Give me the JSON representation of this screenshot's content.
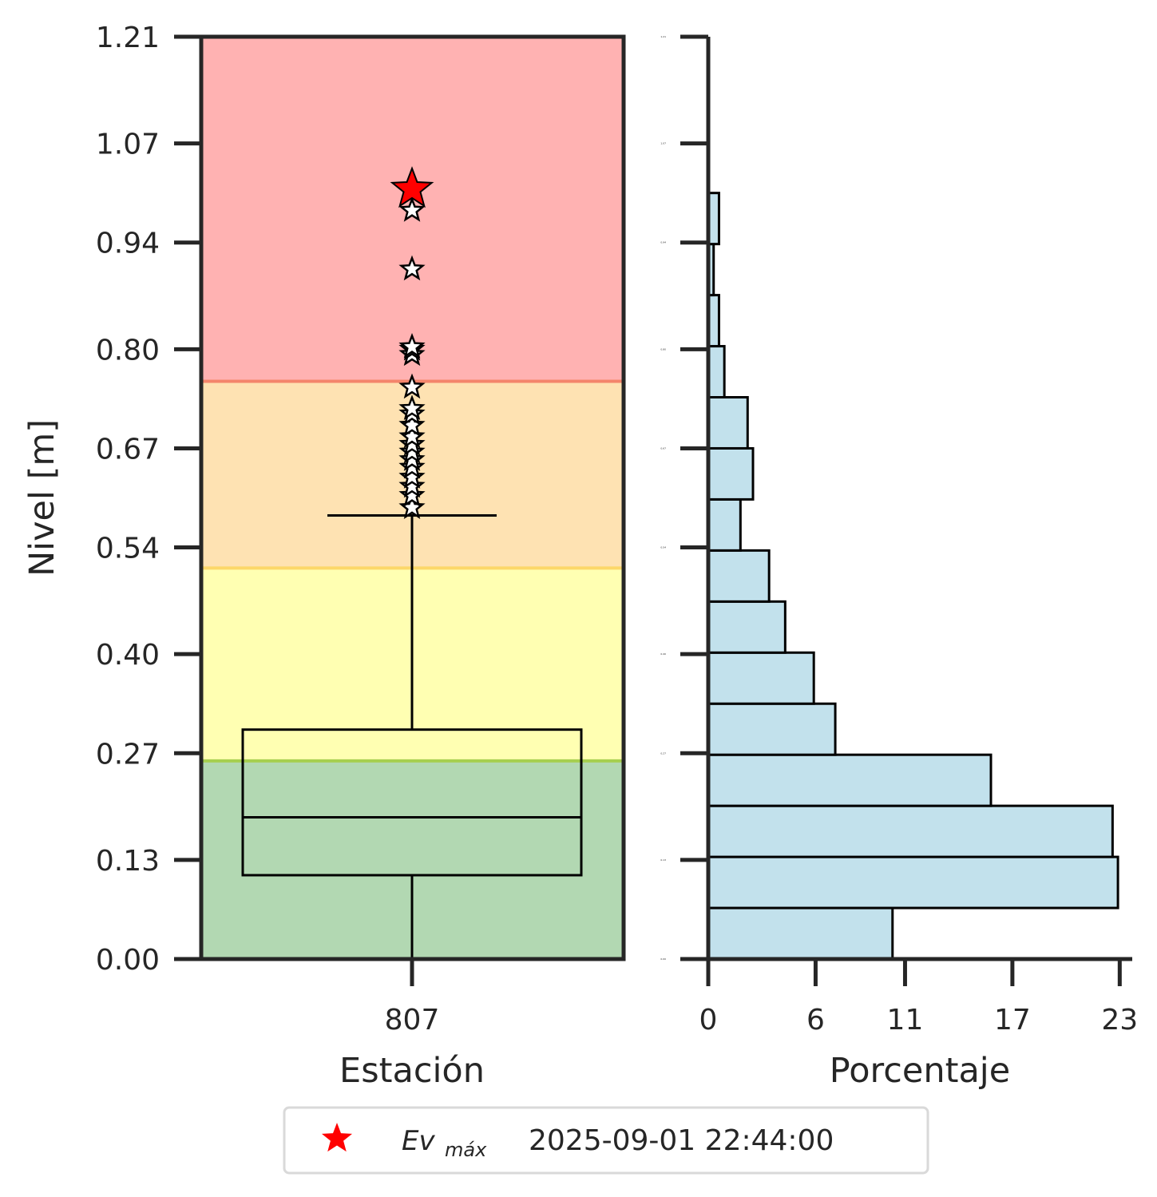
{
  "chart_data": [
    {
      "type": "box",
      "ylabel": "Nivel [m]",
      "xlabel": "Estación",
      "categories": [
        "807"
      ],
      "ylim": [
        0.0,
        1.21
      ],
      "yticks": [
        "0.00",
        "0.13",
        "0.27",
        "0.40",
        "0.54",
        "0.67",
        "0.80",
        "0.94",
        "1.07",
        "1.21"
      ],
      "bands": [
        {
          "from": 0.0,
          "to": 0.26,
          "color": "#b2d8b2",
          "edge": "#a6cf4f"
        },
        {
          "from": 0.26,
          "to": 0.513,
          "color": "#ffffb2",
          "edge": "#fcd76a"
        },
        {
          "from": 0.513,
          "to": 0.758,
          "color": "#fee2b2",
          "edge": "#f4856b"
        },
        {
          "from": 0.758,
          "to": 1.21,
          "color": "#ffb2b2",
          "edge": null
        }
      ],
      "box": {
        "whisker_low": 0.0,
        "q1": 0.11,
        "median": 0.186,
        "q3": 0.301,
        "whisker_high": 0.582
      },
      "outliers": [
        0.592,
        0.608,
        0.62,
        0.632,
        0.645,
        0.655,
        0.665,
        0.675,
        0.685,
        0.7,
        0.715,
        0.722,
        0.75,
        0.793,
        0.8,
        0.803,
        0.905,
        0.982
      ],
      "max_event": {
        "value": 1.01,
        "color": "#ff0000"
      }
    },
    {
      "type": "bar",
      "orientation": "horizontal",
      "xlabel": "Porcentaje",
      "xticks": [
        "0",
        "6",
        "11",
        "17",
        "23"
      ],
      "xlim": [
        0,
        23.7
      ],
      "ylim": [
        0.0,
        1.21
      ],
      "small_yticks": [
        "0.00",
        "0.13",
        "0.27",
        "0.40",
        "0.54",
        "0.67",
        "0.80",
        "0.94",
        "1.07",
        "1.21"
      ],
      "bar_color": "#c2e1ec",
      "bins": [
        {
          "from": 0.0,
          "to": 0.067,
          "value": 10.3
        },
        {
          "from": 0.067,
          "to": 0.134,
          "value": 22.9
        },
        {
          "from": 0.134,
          "to": 0.201,
          "value": 22.6
        },
        {
          "from": 0.201,
          "to": 0.268,
          "value": 15.8
        },
        {
          "from": 0.268,
          "to": 0.335,
          "value": 7.1
        },
        {
          "from": 0.335,
          "to": 0.402,
          "value": 5.9
        },
        {
          "from": 0.402,
          "to": 0.469,
          "value": 4.3
        },
        {
          "from": 0.469,
          "to": 0.536,
          "value": 3.4
        },
        {
          "from": 0.536,
          "to": 0.603,
          "value": 1.8
        },
        {
          "from": 0.603,
          "to": 0.67,
          "value": 2.5
        },
        {
          "from": 0.67,
          "to": 0.737,
          "value": 2.2
        },
        {
          "from": 0.737,
          "to": 0.804,
          "value": 0.9
        },
        {
          "from": 0.804,
          "to": 0.871,
          "value": 0.6
        },
        {
          "from": 0.871,
          "to": 0.938,
          "value": 0.3
        },
        {
          "from": 0.938,
          "to": 1.005,
          "value": 0.6
        }
      ]
    }
  ],
  "legend": {
    "symbol_color": "#ff0000",
    "label_main": "Ev",
    "label_sub": "máx",
    "timestamp": "2025-09-01 22:44:00"
  }
}
